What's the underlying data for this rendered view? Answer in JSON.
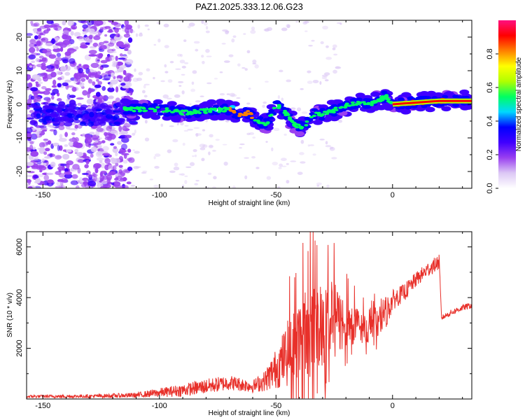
{
  "chart_data": [
    {
      "type": "heatmap",
      "title": "PAZ1.2025.333.12.06.G23",
      "xlabel": "Height of straight line (km)",
      "ylabel": "Frequency (Hz)",
      "xlim": [
        -157,
        34
      ],
      "ylim": [
        -25,
        25
      ],
      "xticks": [
        -150,
        -100,
        -50,
        0
      ],
      "yticks": [
        -20,
        -10,
        0,
        10,
        20
      ],
      "colorbar": {
        "label": "Normalized spectral amplitude",
        "range": [
          0,
          1
        ],
        "ticks": [
          0.0,
          0.2,
          0.4,
          0.6,
          0.8
        ],
        "tick_labels": [
          "0.0",
          "0.2",
          "0.4",
          "0.6",
          "0.8"
        ],
        "colors": [
          "#ffffff",
          "#dcc8f5",
          "#9a40f0",
          "#4000ff",
          "#0000ff",
          "#00d8ff",
          "#00ff60",
          "#b0ff00",
          "#ffff00",
          "#ff8000",
          "#ff0000",
          "#ff1080"
        ]
      },
      "ridge": {
        "height_km": [
          -115,
          -105,
          -100,
          -90,
          -80,
          -70,
          -66,
          -62,
          -58,
          -54,
          -50,
          -46,
          -42,
          -38,
          -34,
          -30,
          -26,
          -22,
          -18,
          -14,
          -10,
          -6,
          -3,
          0,
          10,
          20,
          34
        ],
        "frequency_hz": [
          -1.5,
          -1.5,
          -1.5,
          -2.5,
          -2,
          -1.5,
          -3,
          -2.5,
          -5,
          -6,
          0,
          -2.5,
          -6,
          -7,
          -3,
          -3,
          -2,
          -1,
          0,
          0.5,
          0,
          1,
          2.5,
          0,
          0.5,
          1,
          1
        ]
      },
      "noise_band_km": [
        -157,
        -112
      ]
    },
    {
      "type": "line",
      "title": "",
      "xlabel": "Height of straight line (km)",
      "ylabel": "SNR (10 * v/v)",
      "xlim": [
        -157,
        34
      ],
      "ylim": [
        0,
        6600
      ],
      "xticks": [
        -150,
        -100,
        -50,
        0
      ],
      "yticks": [
        2000,
        4000,
        6000
      ],
      "color": "#e8302a",
      "envelope": {
        "height_km": [
          -157,
          -130,
          -110,
          -100,
          -90,
          -80,
          -70,
          -60,
          -55,
          -50,
          -45,
          -40,
          -35,
          -30,
          -25,
          -20,
          -15,
          -10,
          -5,
          -2,
          0,
          5,
          10,
          15,
          20,
          21,
          25,
          30,
          34
        ],
        "mean": [
          100,
          110,
          150,
          250,
          350,
          500,
          650,
          500,
          700,
          1200,
          1800,
          2300,
          2800,
          3000,
          3100,
          3000,
          2900,
          2700,
          3300,
          3500,
          3900,
          4200,
          4700,
          5100,
          5400,
          3200,
          3400,
          3600,
          3700
        ],
        "amplitude": [
          60,
          70,
          100,
          180,
          250,
          300,
          300,
          250,
          400,
          800,
          1300,
          1700,
          1900,
          1800,
          1500,
          1000,
          700,
          500,
          700,
          600,
          400,
          350,
          300,
          300,
          300,
          100,
          120,
          120,
          120
        ]
      }
    }
  ]
}
